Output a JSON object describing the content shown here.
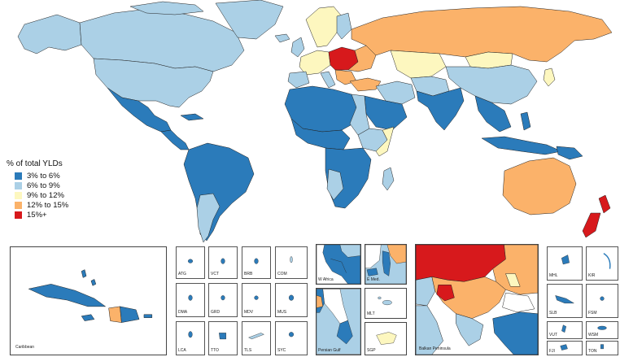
{
  "legend": {
    "title": "% of total YLDs",
    "items": [
      {
        "label": "3% to 6%",
        "color": "#2b7bba"
      },
      {
        "label": "6% to 9%",
        "color": "#abd0e6"
      },
      {
        "label": "9% to 12%",
        "color": "#fdf7bf"
      },
      {
        "label": "12% to 15%",
        "color": "#fbb26a"
      },
      {
        "label": "15%+",
        "color": "#d7191c"
      }
    ]
  },
  "insets": {
    "caribbean": "Caribbean",
    "small_states": [
      "ATG",
      "VCT",
      "BRB",
      "COM",
      "DMA",
      "GRD",
      "MDV",
      "MUS",
      "LCA",
      "TTO",
      "TLS",
      "SYC"
    ],
    "w_africa": "W Africa",
    "e_med": "E Med.",
    "persian_gulf": "Persian Gulf",
    "mlt": "MLT",
    "sgp": "SGP",
    "balkan": "Balkan Peninsula",
    "pacific": [
      "MHL",
      "KIR",
      "SLB",
      "FSM",
      "VUT",
      "WSM",
      "FJI",
      "TON"
    ]
  },
  "colors": {
    "c1": "#2b7bba",
    "c2": "#abd0e6",
    "c3": "#fdf7bf",
    "c4": "#fbb26a",
    "c5": "#d7191c",
    "border": "#222222"
  }
}
